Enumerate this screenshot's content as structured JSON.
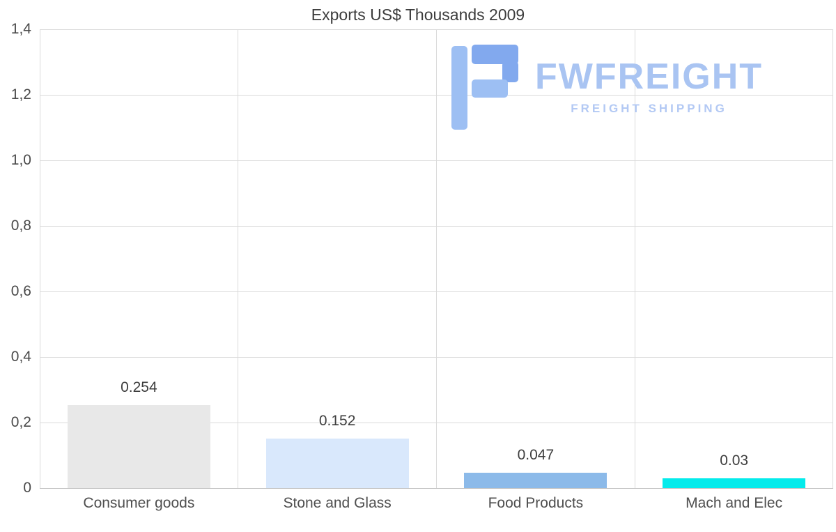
{
  "chart_data": {
    "type": "bar",
    "title": "Exports US$ Thousands 2009",
    "categories": [
      "Consumer goods",
      "Stone and Glass",
      "Food Products",
      "Mach and Elec"
    ],
    "values": [
      0.254,
      0.152,
      0.047,
      0.03
    ],
    "value_labels": [
      "0.254",
      "0.152",
      "0.047",
      "0.03"
    ],
    "bar_colors": [
      "#e8e8e8",
      "#d9e8fc",
      "#8cbae9",
      "#04ebeb"
    ],
    "xlabel": "",
    "ylabel": "",
    "ylim": [
      0,
      1.4
    ],
    "ytick_values": [
      0,
      0.2,
      0.4,
      0.6,
      0.8,
      1.0,
      1.2,
      1.4
    ],
    "ytick_labels": [
      "0",
      "0,2",
      "0,4",
      "0,6",
      "0,8",
      "1,0",
      "1,2",
      "1,4"
    ],
    "grid": true,
    "legend": "none",
    "background": "#ffffff"
  },
  "watermark": {
    "brand": "FWFREIGHT",
    "tagline": "FREIGHT SHIPPING",
    "brand_color": "#a9c4f2",
    "tagline_color": "#b3c9f4",
    "icon_colors": [
      "#9dbff3",
      "#82a9ee"
    ]
  }
}
